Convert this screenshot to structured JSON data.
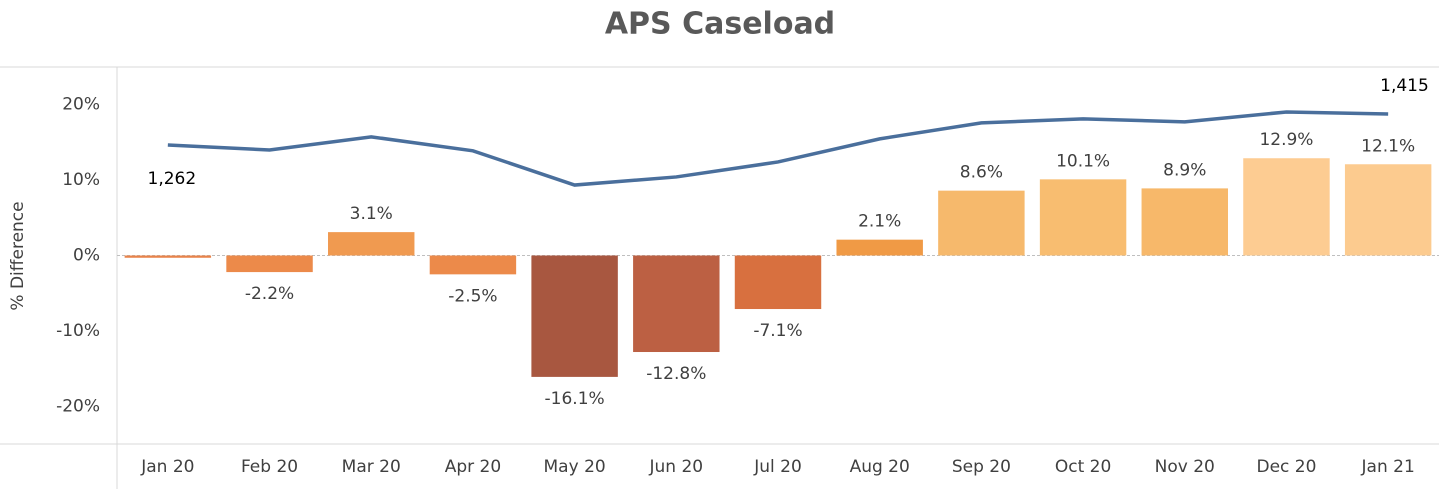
{
  "chart_data": {
    "type": "bar",
    "title": "APS Caseload",
    "y_label": "% Difference",
    "categories": [
      "Jan 20",
      "Feb 20",
      "Mar 20",
      "Apr 20",
      "May 20",
      "Jun 20",
      "Jul 20",
      "Aug 20",
      "Sep 20",
      "Oct 20",
      "Nov 20",
      "Dec 20",
      "Jan 21"
    ],
    "ylim": [
      -25,
      25
    ],
    "yticks": [
      {
        "value": -20,
        "label": "-20%"
      },
      {
        "value": -10,
        "label": "-10%"
      },
      {
        "value": 0,
        "label": "0%"
      },
      {
        "value": 10,
        "label": "10%"
      },
      {
        "value": 20,
        "label": "20%"
      }
    ],
    "y2lim": [
      -215,
      1647
    ],
    "series": [
      {
        "name": "% Difference",
        "type": "bar",
        "values": [
          -0.3,
          -2.2,
          3.1,
          -2.5,
          -16.1,
          -12.8,
          -7.1,
          2.1,
          8.6,
          10.1,
          8.9,
          12.9,
          12.1
        ],
        "value_labels": [
          null,
          "-2.2%",
          "3.1%",
          "-2.5%",
          "-16.1%",
          "-12.8%",
          "-7.1%",
          "2.1%",
          "8.6%",
          "10.1%",
          "8.9%",
          "12.9%",
          "12.1%"
        ],
        "colors": [
          "#e8834a",
          "#ec8a4a",
          "#f09a50",
          "#ec8a4a",
          "#a85740",
          "#bc6043",
          "#d8703f",
          "#f09a45",
          "#f6b96c",
          "#f8bd70",
          "#f7b86a",
          "#fdcc92",
          "#fccb8f"
        ]
      },
      {
        "name": "Caseload",
        "type": "line",
        "axis": "y2",
        "color": "#4a6f9c",
        "values": [
          1262,
          1237,
          1302,
          1233,
          1064,
          1104,
          1178,
          1292,
          1371,
          1391,
          1376,
          1425,
          1415
        ],
        "value_labels": [
          "1,262",
          null,
          null,
          null,
          null,
          null,
          null,
          null,
          null,
          null,
          null,
          null,
          "1,415"
        ]
      }
    ]
  }
}
